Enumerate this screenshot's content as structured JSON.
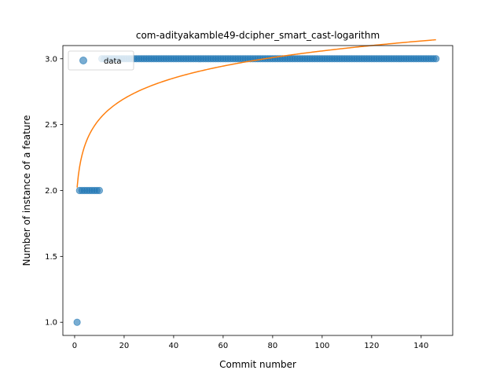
{
  "chart_data": {
    "type": "scatter",
    "title": "com-adityakamble49-dcipher_smart_cast-logarithm",
    "xlabel": "Commit number",
    "ylabel": "Number of instance of a feature",
    "xlim": [
      -4.75,
      152.75
    ],
    "ylim": [
      0.9,
      3.1
    ],
    "xticks": [
      0,
      20,
      40,
      60,
      80,
      100,
      120,
      140
    ],
    "yticks": [
      1.0,
      1.5,
      2.0,
      2.5,
      3.0
    ],
    "xtick_labels": [
      "0",
      "20",
      "40",
      "60",
      "80",
      "100",
      "120",
      "140"
    ],
    "ytick_labels": [
      "1.0",
      "1.5",
      "2.0",
      "2.5",
      "3.0"
    ],
    "grid": false,
    "legend": {
      "placement": "top-left",
      "entries": [
        "data"
      ]
    },
    "series": [
      {
        "name": "data",
        "kind": "scatter",
        "color": "#1f77b4",
        "alpha": 0.6,
        "segments": [
          {
            "x_from": 1,
            "x_to": 1,
            "y": 1
          },
          {
            "x_from": 2,
            "x_to": 10,
            "y": 2
          },
          {
            "x_from": 11,
            "x_to": 146,
            "y": 3
          }
        ]
      },
      {
        "kind": "line",
        "color": "#ff7f0e",
        "fit": {
          "form": "a + b*ln(x)",
          "a": 2.023,
          "b": 0.225,
          "x_from": 1,
          "x_to": 146
        }
      }
    ]
  }
}
